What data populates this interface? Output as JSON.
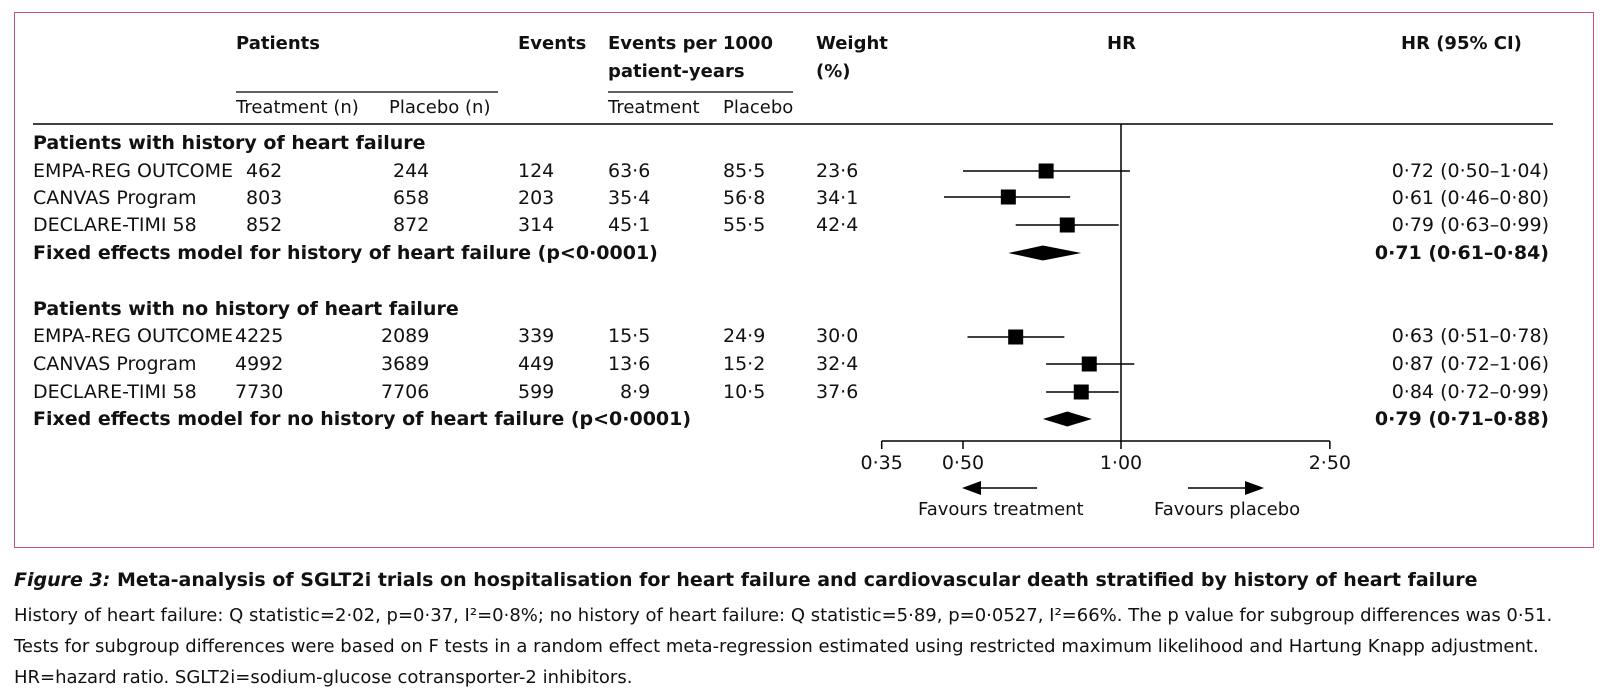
{
  "header": {
    "patients": "Patients",
    "treatment_n": "Treatment (n)",
    "placebo_n": "Placebo (n)",
    "events": "Events",
    "events_per_1000_line1": "Events per 1000",
    "events_per_1000_line2": "patient-years",
    "treatment": "Treatment",
    "placebo": "Placebo",
    "weight_line1": "Weight",
    "weight_line2": "(%)",
    "hr": "HR",
    "hr_ci": "HR (95% CI)"
  },
  "groups": [
    {
      "title": "Patients with history of heart failure",
      "rows": [
        {
          "trial": "EMPA-REG OUTCOME",
          "treat_n": "462",
          "placebo_n": "244",
          "events": "124",
          "rate_treat": "63·6",
          "rate_placebo": "85·5",
          "weight": "23·6",
          "hr_ci": "0·72 (0·50–1·04)"
        },
        {
          "trial": "CANVAS Program",
          "treat_n": "803",
          "placebo_n": "658",
          "events": "203",
          "rate_treat": "35·4",
          "rate_placebo": "56·8",
          "weight": "34·1",
          "hr_ci": "0·61 (0·46–0·80)"
        },
        {
          "trial": "DECLARE-TIMI 58",
          "treat_n": "852",
          "placebo_n": "872",
          "events": "314",
          "rate_treat": "45·1",
          "rate_placebo": "55·5",
          "weight": "42·4",
          "hr_ci": "0·79 (0·63–0·99)"
        }
      ],
      "summary_label": "Fixed effects model for history of heart failure (p<0·0001)",
      "summary_hr_ci": "0·71 (0·61–0·84)"
    },
    {
      "title": "Patients with no history of heart failure",
      "rows": [
        {
          "trial": "EMPA-REG OUTCOME",
          "treat_n": "4225",
          "placebo_n": "2089",
          "events": "339",
          "rate_treat": "15·5",
          "rate_placebo": "24·9",
          "weight": "30·0",
          "hr_ci": "0·63 (0·51–0·78)"
        },
        {
          "trial": "CANVAS Program",
          "treat_n": "4992",
          "placebo_n": "3689",
          "events": "449",
          "rate_treat": "13·6",
          "rate_placebo": "15·2",
          "weight": "32·4",
          "hr_ci": "0·87 (0·72–1·06)"
        },
        {
          "trial": "DECLARE-TIMI 58",
          "treat_n": "7730",
          "placebo_n": "7706",
          "events": "599",
          "rate_treat": "8·9",
          "rate_placebo": "10·5",
          "weight": "37·6",
          "hr_ci": "0·84 (0·72–0·99)"
        }
      ],
      "summary_label": "Fixed effects model for no history of heart failure (p<0·0001)",
      "summary_hr_ci": "0·79 (0·71–0·88)"
    }
  ],
  "axis": {
    "ticks": [
      "0·35",
      "0·50",
      "1·00",
      "2·50"
    ],
    "favours_treatment": "Favours treatment",
    "favours_placebo": "Favours placebo"
  },
  "caption": {
    "figure_label": "Figure 3:",
    "title": "Meta-analysis of SGLT2i trials on hospitalisation for heart failure and cardiovascular death stratified by history of heart failure",
    "body": "History of heart failure: Q statistic=2·02, p=0·37, I²=0·8%; no history of heart failure: Q statistic=5·89, p=0·0527, I²=66%. The p value for subgroup differences was 0·51. Tests for subgroup differences were based on F tests in a random effect meta-regression estimated using restricted maximum likelihood and Hartung Knapp adjustment. HR=hazard ratio. SGLT2i=sodium-glucose cotransporter-2 inhibitors."
  },
  "colors": {
    "frame": "#c8516e",
    "ink": "#000000"
  },
  "chart_data": {
    "type": "forest",
    "scale": "log",
    "xlim": [
      0.35,
      2.5
    ],
    "reference_line": 1.0,
    "studies": [
      {
        "group": 0,
        "hr": 0.72,
        "lo": 0.5,
        "hi": 1.04,
        "weight": 23.6
      },
      {
        "group": 0,
        "hr": 0.61,
        "lo": 0.46,
        "hi": 0.8,
        "weight": 34.1
      },
      {
        "group": 0,
        "hr": 0.79,
        "lo": 0.63,
        "hi": 0.99,
        "weight": 42.4
      },
      {
        "group": 1,
        "hr": 0.63,
        "lo": 0.51,
        "hi": 0.78,
        "weight": 30.0
      },
      {
        "group": 1,
        "hr": 0.87,
        "lo": 0.72,
        "hi": 1.06,
        "weight": 32.4
      },
      {
        "group": 1,
        "hr": 0.84,
        "lo": 0.72,
        "hi": 0.99,
        "weight": 37.6
      }
    ],
    "summaries": [
      {
        "group": 0,
        "hr": 0.71,
        "lo": 0.61,
        "hi": 0.84
      },
      {
        "group": 1,
        "hr": 0.79,
        "lo": 0.71,
        "hi": 0.88
      }
    ],
    "ticks": [
      0.35,
      0.5,
      1.0,
      2.5
    ]
  }
}
